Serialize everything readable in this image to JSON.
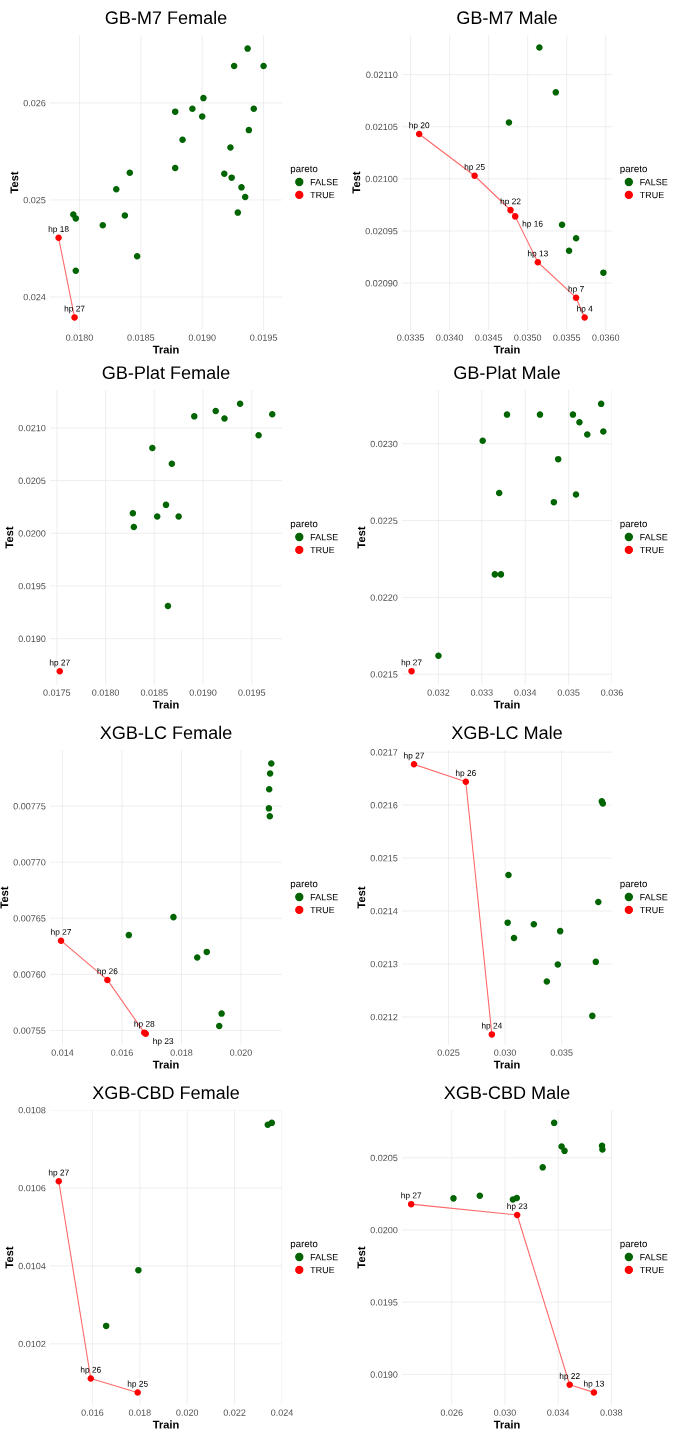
{
  "chart_data": [
    {
      "type": "scatter",
      "title": "GB-M7 Female",
      "xlabel": "Train",
      "ylabel": "Test",
      "legend_title": "pareto",
      "legend": "right",
      "grid": true,
      "marker": "circle",
      "xlim": [
        0.01776,
        0.01965
      ],
      "ylim": [
        0.02366,
        0.0267
      ],
      "xticks": [
        {
          "value": 0.018,
          "label": "0.0180"
        },
        0.0185,
        {
          "value": 0.019,
          "label": "0.0190"
        },
        0.0195
      ],
      "yticks": [
        0.024,
        0.025,
        0.026
      ],
      "series": [
        {
          "type": "line",
          "marker": "none",
          "color": "#ff6b6b",
          "x": [
            0.01783,
            0.01796
          ],
          "values": [
            0.02461,
            0.02379
          ]
        },
        {
          "name": "FALSE",
          "color": "#006400",
          "x": [
            0.01937,
            0.01926,
            0.0195,
            0.01901,
            0.01878,
            0.01892,
            0.019,
            0.01942,
            0.01938,
            0.01884,
            0.01923,
            0.01878,
            0.01841,
            0.01918,
            0.01924,
            0.0183,
            0.01932,
            0.01935,
            0.01795,
            0.01797,
            0.01837,
            0.01929,
            0.01819,
            0.01847,
            0.01797
          ],
          "values": [
            0.02656,
            0.02638,
            0.02638,
            0.02605,
            0.02591,
            0.02594,
            0.02586,
            0.02594,
            0.02572,
            0.02562,
            0.02554,
            0.02533,
            0.02528,
            0.02527,
            0.02523,
            0.02511,
            0.02513,
            0.02503,
            0.02485,
            0.02481,
            0.02484,
            0.02487,
            0.02474,
            0.02442,
            0.02427
          ]
        },
        {
          "name": "TRUE",
          "color": "#ff0000",
          "x": [
            0.01783,
            0.01796
          ],
          "values": [
            0.02461,
            0.02379
          ],
          "value_labels": [
            "hp 18",
            "hp 27"
          ]
        }
      ]
    },
    {
      "type": "scatter",
      "title": "GB-M7 Male",
      "xlabel": "Train",
      "ylabel": "Test",
      "legend_title": "pareto",
      "legend": "right",
      "grid": true,
      "marker": "circle",
      "xlim": [
        0.03339,
        0.03608
      ],
      "ylim": [
        0.020855,
        0.021138
      ],
      "xticks": [
        0.0335,
        {
          "value": 0.034,
          "label": "0.0340"
        },
        0.0345,
        {
          "value": 0.035,
          "label": "0.0350"
        },
        0.0355,
        {
          "value": 0.036,
          "label": "0.0360"
        }
      ],
      "yticks": [
        {
          "value": 0.0209,
          "label": "0.02090"
        },
        0.02095,
        {
          "value": 0.021,
          "label": "0.02100"
        },
        0.02105,
        {
          "value": 0.0211,
          "label": "0.02110"
        }
      ],
      "series": [
        {
          "type": "line",
          "marker": "none",
          "color": "#ff6b6b",
          "x": [
            0.03361,
            0.03432,
            0.03478,
            0.03484,
            0.03513,
            0.03562,
            0.03573
          ],
          "values": [
            0.021043,
            0.021003,
            0.02097,
            0.020964,
            0.02092,
            0.020886,
            0.020867
          ]
        },
        {
          "name": "FALSE",
          "color": "#006400",
          "x": [
            0.03515,
            0.03536,
            0.03476,
            0.03544,
            0.03562,
            0.03553,
            0.03597
          ],
          "values": [
            0.021126,
            0.021083,
            0.021054,
            0.020956,
            0.020943,
            0.020931,
            0.02091
          ]
        },
        {
          "name": "TRUE",
          "color": "#ff0000",
          "x": [
            0.03361,
            0.03432,
            0.03478,
            0.03484,
            0.03513,
            0.03562,
            0.03573
          ],
          "values": [
            0.021043,
            0.021003,
            0.02097,
            0.020964,
            0.02092,
            0.020886,
            0.020867
          ],
          "value_labels": [
            "hp 20",
            "hp 25",
            "hp 22",
            "hp 16",
            "hp 13",
            "hp 7",
            "hp 4"
          ]
        }
      ]
    },
    {
      "type": "scatter",
      "title": "GB-Plat Female",
      "xlabel": "Train",
      "ylabel": "Test",
      "legend_title": "pareto",
      "legend": "right",
      "grid": true,
      "marker": "circle",
      "xlim": [
        0.01743,
        0.01981
      ],
      "ylim": [
        0.01856,
        0.02136
      ],
      "xticks": [
        0.0175,
        {
          "value": 0.018,
          "label": "0.0180"
        },
        0.0185,
        {
          "value": 0.019,
          "label": "0.0190"
        },
        0.0195
      ],
      "yticks": [
        {
          "value": 0.019,
          "label": "0.0190"
        },
        0.0195,
        {
          "value": 0.02,
          "label": "0.0200"
        },
        0.0205,
        {
          "value": 0.021,
          "label": "0.0210"
        }
      ],
      "series": [
        {
          "name": "FALSE",
          "color": "#006400",
          "x": [
            0.01938,
            0.01913,
            0.01922,
            0.01891,
            0.01971,
            0.01957,
            0.01848,
            0.01868,
            0.01828,
            0.01829,
            0.01862,
            0.01853,
            0.01875,
            0.01864
          ],
          "values": [
            0.02123,
            0.02116,
            0.02109,
            0.02111,
            0.02113,
            0.02093,
            0.02081,
            0.02066,
            0.02019,
            0.02006,
            0.02027,
            0.02016,
            0.02016,
            0.01931
          ]
        },
        {
          "name": "TRUE",
          "color": "#ff0000",
          "x": [
            0.01753
          ],
          "values": [
            0.01869
          ],
          "value_labels": [
            "hp 27"
          ]
        }
      ]
    },
    {
      "type": "scatter",
      "title": "GB-Plat Male",
      "xlabel": "Train",
      "ylabel": "Test",
      "legend_title": "pareto",
      "legend": "right",
      "grid": true,
      "marker": "circle",
      "xlim": [
        0.03116,
        0.036
      ],
      "ylim": [
        0.02143,
        0.02335
      ],
      "xticks": [
        0.032,
        0.033,
        0.034,
        0.035,
        0.036
      ],
      "yticks": [
        0.0215,
        {
          "value": 0.022,
          "label": "0.0220"
        },
        0.0225,
        {
          "value": 0.023,
          "label": "0.0230"
        }
      ],
      "series": [
        {
          "name": "FALSE",
          "color": "#006400",
          "x": [
            0.03575,
            0.03358,
            0.03434,
            0.0351,
            0.03525,
            0.03543,
            0.0358,
            0.03302,
            0.03476,
            0.0334,
            0.03466,
            0.03517,
            0.0333,
            0.03344,
            0.032
          ],
          "values": [
            0.02326,
            0.02319,
            0.02319,
            0.02319,
            0.02314,
            0.02306,
            0.02308,
            0.02302,
            0.0229,
            0.02268,
            0.02262,
            0.02267,
            0.02215,
            0.02215,
            0.02162
          ]
        },
        {
          "name": "TRUE",
          "color": "#ff0000",
          "x": [
            0.03138
          ],
          "values": [
            0.02152
          ],
          "value_labels": [
            "hp 27"
          ]
        }
      ]
    },
    {
      "type": "scatter",
      "title": "XGB-LC Female",
      "xlabel": "Train",
      "ylabel": "Test",
      "legend_title": "pareto",
      "legend": "right",
      "grid": true,
      "marker": "circle",
      "xlim": [
        0.01358,
        0.02138
      ],
      "ylim": [
        0.007537,
        0.0078
      ],
      "xticks": [
        0.014,
        0.016,
        0.018,
        {
          "value": 0.02,
          "label": "0.020"
        }
      ],
      "yticks": [
        0.00755,
        {
          "value": 0.0076,
          "label": "0.00760"
        },
        0.00765,
        {
          "value": 0.0077,
          "label": "0.00770"
        },
        0.00775
      ],
      "series": [
        {
          "type": "line",
          "marker": "none",
          "color": "#ff6b6b",
          "x": [
            0.01395,
            0.01551,
            0.01675,
            0.0168
          ],
          "values": [
            0.00763,
            0.007595,
            0.007548,
            0.007547
          ]
        },
        {
          "name": "FALSE",
          "color": "#006400",
          "x": [
            0.02102,
            0.02098,
            0.02095,
            0.02094,
            0.02097,
            0.01773,
            0.01623,
            0.01885,
            0.01853,
            0.01935,
            0.01927
          ],
          "values": [
            0.007788,
            0.007779,
            0.007765,
            0.007748,
            0.007741,
            0.007651,
            0.007635,
            0.00762,
            0.007615,
            0.007565,
            0.007554
          ]
        },
        {
          "name": "TRUE",
          "color": "#ff0000",
          "x": [
            0.01395,
            0.01551,
            0.01675,
            0.0168
          ],
          "values": [
            0.00763,
            0.007595,
            0.007548,
            0.007547
          ],
          "value_labels": [
            "hp 27",
            "hp 26",
            "hp 28",
            "hp 23"
          ]
        }
      ]
    },
    {
      "type": "scatter",
      "title": "XGB-LC Male",
      "xlabel": "Train",
      "ylabel": "Test",
      "legend_title": "pareto",
      "legend": "right",
      "grid": true,
      "marker": "circle",
      "xlim": [
        0.02089,
        0.03945
      ],
      "ylim": [
        0.021147,
        0.021704
      ],
      "xticks": [
        0.025,
        {
          "value": 0.03,
          "label": "0.030"
        },
        0.035
      ],
      "yticks": [
        0.0212,
        0.0213,
        0.0214,
        0.0215,
        0.0216,
        0.0217
      ],
      "series": [
        {
          "type": "line",
          "marker": "none",
          "color": "#ff6b6b",
          "x": [
            0.02195,
            0.02653,
            0.02883
          ],
          "values": [
            0.021677,
            0.021644,
            0.021167
          ]
        },
        {
          "name": "FALSE",
          "color": "#006400",
          "x": [
            0.03855,
            0.03864,
            0.0303,
            0.03824,
            0.03023,
            0.03254,
            0.03079,
            0.03487,
            0.03466,
            0.03802,
            0.03369,
            0.03771
          ],
          "values": [
            0.021607,
            0.021603,
            0.021468,
            0.021417,
            0.021378,
            0.021375,
            0.021349,
            0.021362,
            0.021299,
            0.021304,
            0.021267,
            0.021202
          ]
        },
        {
          "name": "TRUE",
          "color": "#ff0000",
          "x": [
            0.02195,
            0.02653,
            0.02883
          ],
          "values": [
            0.021677,
            0.021644,
            0.021167
          ],
          "value_labels": [
            "hp 27",
            "hp 26",
            "hp 24"
          ]
        }
      ]
    },
    {
      "type": "scatter",
      "title": "XGB-CBD Female",
      "xlabel": "Train",
      "ylabel": "Test",
      "legend_title": "pareto",
      "legend": "right",
      "grid": true,
      "marker": "circle",
      "xlim": [
        0.01421,
        0.024
      ],
      "ylim": [
        0.010043,
        0.0108
      ],
      "xticks": [
        0.016,
        0.018,
        {
          "value": 0.02,
          "label": "0.020"
        },
        0.022,
        0.024
      ],
      "yticks": [
        0.0102,
        0.0104,
        0.0106,
        0.0108
      ],
      "series": [
        {
          "type": "line",
          "marker": "none",
          "color": "#ff6b6b",
          "x": [
            0.01458,
            0.01593,
            0.01791
          ],
          "values": [
            0.010617,
            0.010111,
            0.010075
          ]
        },
        {
          "name": "FALSE",
          "color": "#006400",
          "x": [
            0.0234,
            0.02357,
            0.01794,
            0.01658
          ],
          "values": [
            0.010762,
            0.010767,
            0.010389,
            0.010246
          ]
        },
        {
          "name": "TRUE",
          "color": "#ff0000",
          "x": [
            0.01458,
            0.01593,
            0.01791
          ],
          "values": [
            0.010617,
            0.010111,
            0.010075
          ],
          "value_labels": [
            "hp 27",
            "hp 26",
            "hp 25"
          ]
        }
      ]
    },
    {
      "type": "scatter",
      "title": "XGB-CBD Male",
      "xlabel": "Train",
      "ylabel": "Test",
      "legend_title": "pareto",
      "legend": "right",
      "grid": true,
      "marker": "circle",
      "xlim": [
        0.02226,
        0.03805
      ],
      "ylim": [
        0.018788,
        0.020831
      ],
      "xticks": [
        0.026,
        {
          "value": 0.03,
          "label": "0.030"
        },
        0.034,
        0.038
      ],
      "yticks": [
        {
          "value": 0.019,
          "label": "0.0190"
        },
        0.0195,
        {
          "value": 0.02,
          "label": "0.0200"
        },
        0.0205
      ],
      "series": [
        {
          "type": "line",
          "marker": "none",
          "color": "#ff6b6b",
          "x": [
            0.02295,
            0.03092,
            0.03487,
            0.03669
          ],
          "values": [
            0.020179,
            0.020104,
            0.018928,
            0.018875
          ]
        },
        {
          "name": "FALSE",
          "color": "#006400",
          "x": [
            0.0337,
            0.03426,
            0.03448,
            0.0373,
            0.03733,
            0.03284,
            0.02613,
            0.02811,
            0.0306,
            0.03089
          ],
          "values": [
            0.020742,
            0.020578,
            0.020548,
            0.020583,
            0.020557,
            0.020434,
            0.020219,
            0.020237,
            0.020211,
            0.020222
          ]
        },
        {
          "name": "TRUE",
          "color": "#ff0000",
          "x": [
            0.02295,
            0.03092,
            0.03487,
            0.03669
          ],
          "values": [
            0.020179,
            0.020104,
            0.018928,
            0.018875
          ],
          "value_labels": [
            "hp 27",
            "hp 23",
            "hp 22",
            "hp 13"
          ]
        }
      ]
    }
  ]
}
